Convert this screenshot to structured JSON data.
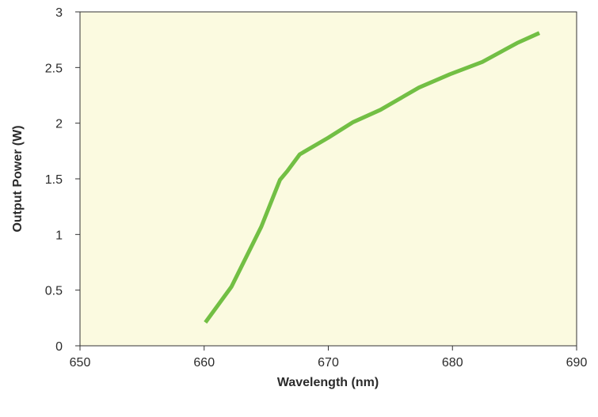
{
  "chart_data": {
    "type": "line",
    "title": "",
    "xlabel": "Wavelength (nm)",
    "ylabel": "Output Power (W)",
    "xlim": [
      650,
      690
    ],
    "ylim": [
      0,
      3
    ],
    "xticks": [
      650,
      660,
      670,
      680,
      690
    ],
    "yticks": [
      0,
      0.5,
      1,
      1.5,
      2,
      2.5,
      3
    ],
    "x_tick_labels": [
      "650",
      "660",
      "670",
      "680",
      "690"
    ],
    "y_tick_labels": [
      "0",
      "0.5",
      "1",
      "1.5",
      "2",
      "2.5",
      "3"
    ],
    "grid": false,
    "legend": "none",
    "colors": {
      "plot_background": "#fbfae0",
      "line": "#72bf44",
      "axis": "#333333"
    },
    "series": [
      {
        "x": [
          660.1,
          662.2,
          664.6,
          666.1,
          666.7,
          667.7,
          670.0,
          672.0,
          674.2,
          677.3,
          679.8,
          682.4,
          685.2,
          687.0
        ],
        "values": [
          0.21,
          0.53,
          1.07,
          1.49,
          1.57,
          1.72,
          1.87,
          2.01,
          2.12,
          2.32,
          2.44,
          2.55,
          2.72,
          2.81
        ]
      }
    ]
  }
}
